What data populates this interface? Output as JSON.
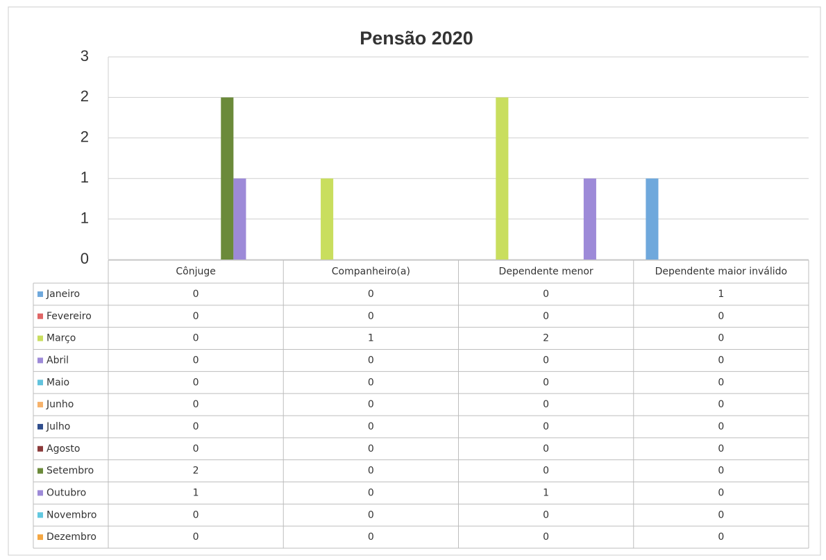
{
  "chart_data": {
    "type": "bar",
    "title": "Pensão 2020",
    "categories": [
      "Cônjuge",
      "Companheiro(a)",
      "Dependente menor",
      "Dependente maior inválido"
    ],
    "ylim": [
      0,
      2.5
    ],
    "yticks": [
      0,
      {
        "value": 0.5,
        "label": "1"
      },
      1,
      {
        "value": 1.5,
        "label": "2"
      },
      2,
      {
        "value": 2.5,
        "label": "3"
      }
    ],
    "grid": true,
    "series": [
      {
        "name": "Janeiro",
        "color": "#6fa8dc",
        "values": [
          0,
          0,
          0,
          1
        ]
      },
      {
        "name": "Fevereiro",
        "color": "#e06666",
        "values": [
          0,
          0,
          0,
          0
        ]
      },
      {
        "name": "Março",
        "color": "#c9de5e",
        "values": [
          0,
          1,
          2,
          0
        ]
      },
      {
        "name": "Abril",
        "color": "#9d8ad8",
        "values": [
          0,
          0,
          0,
          0
        ]
      },
      {
        "name": "Maio",
        "color": "#62c3dd",
        "values": [
          0,
          0,
          0,
          0
        ]
      },
      {
        "name": "Junho",
        "color": "#f6b26b",
        "values": [
          0,
          0,
          0,
          0
        ]
      },
      {
        "name": "Julho",
        "color": "#2f4d8c",
        "values": [
          0,
          0,
          0,
          0
        ]
      },
      {
        "name": "Agosto",
        "color": "#8b3a3a",
        "values": [
          0,
          0,
          0,
          0
        ]
      },
      {
        "name": "Setembro",
        "color": "#6b8a3a",
        "values": [
          2,
          0,
          0,
          0
        ]
      },
      {
        "name": "Outubro",
        "color": "#9d8ad8",
        "values": [
          1,
          0,
          1,
          0
        ]
      },
      {
        "name": "Novembro",
        "color": "#62c8e0",
        "values": [
          0,
          0,
          0,
          0
        ]
      },
      {
        "name": "Dezembro",
        "color": "#f5a742",
        "values": [
          0,
          0,
          0,
          0
        ]
      }
    ]
  }
}
